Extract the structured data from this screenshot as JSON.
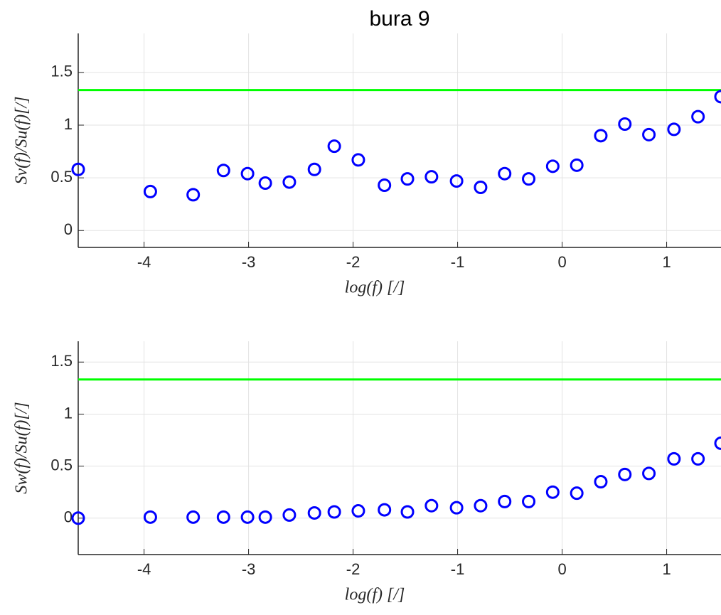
{
  "chart_data": [
    {
      "type": "scatter",
      "title": "bura 9",
      "x_label": "log(f) [/]",
      "y_label": "Sv(f)/Su(f)[/]",
      "x": [
        -4.63,
        -3.94,
        -3.53,
        -3.24,
        -3.01,
        -2.84,
        -2.61,
        -2.37,
        -2.18,
        -1.95,
        -1.7,
        -1.48,
        -1.25,
        -1.01,
        -0.78,
        -0.55,
        -0.32,
        -0.09,
        0.14,
        0.37,
        0.6,
        0.83,
        1.07,
        1.3,
        1.52
      ],
      "series": [
        {
          "color": "#0000ff",
          "values": [
            0.58,
            0.37,
            0.34,
            0.57,
            0.54,
            0.45,
            0.46,
            0.58,
            0.8,
            0.67,
            0.43,
            0.49,
            0.51,
            0.47,
            0.41,
            0.54,
            0.49,
            0.61,
            0.62,
            0.9,
            1.01,
            0.91,
            0.96,
            1.08,
            1.27
          ]
        }
      ],
      "reference_line": {
        "value": 1.333,
        "color": "#00ff00"
      },
      "xlim": [
        -4.63,
        1.52
      ],
      "ylim": [
        -0.16,
        1.87
      ],
      "xticks": [
        -4,
        -3,
        -2,
        -1,
        0,
        1
      ],
      "yticks": [
        0,
        0.5,
        1,
        1.5
      ],
      "grid": true
    },
    {
      "type": "scatter",
      "x_label": "log(f) [/]",
      "y_label": "Sw(f)/Su(f)[/]",
      "x": [
        -4.63,
        -3.94,
        -3.53,
        -3.24,
        -3.01,
        -2.84,
        -2.61,
        -2.37,
        -2.18,
        -1.95,
        -1.7,
        -1.48,
        -1.25,
        -1.01,
        -0.78,
        -0.55,
        -0.32,
        -0.09,
        0.14,
        0.37,
        0.6,
        0.83,
        1.07,
        1.3,
        1.52
      ],
      "series": [
        {
          "color": "#0000ff",
          "values": [
            0,
            0.01,
            0.01,
            0.01,
            0.01,
            0.01,
            0.03,
            0.05,
            0.06,
            0.07,
            0.08,
            0.06,
            0.12,
            0.1,
            0.12,
            0.16,
            0.16,
            0.25,
            0.24,
            0.35,
            0.42,
            0.43,
            0.57,
            0.57,
            0.72
          ]
        }
      ],
      "reference_line": {
        "value": 1.333,
        "color": "#00ff00"
      },
      "xlim": [
        -4.63,
        1.52
      ],
      "ylim": [
        -0.35,
        1.7
      ],
      "xticks": [
        -4,
        -3,
        -2,
        -1,
        0,
        1
      ],
      "yticks": [
        0,
        0.5,
        1,
        1.5
      ],
      "grid": true
    }
  ]
}
